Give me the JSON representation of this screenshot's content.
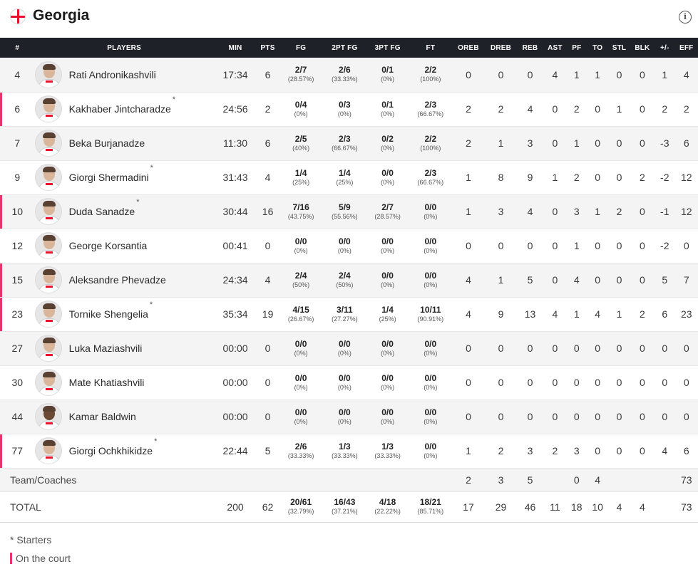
{
  "team": {
    "name": "Georgia"
  },
  "header_icons": {
    "flag": "georgia-flag-icon",
    "info": "info-icon",
    "info_glyph": "i"
  },
  "colors": {
    "header_bg": "#1f2129",
    "on_court_marker": "#e8336d",
    "row_alt": "#f4f4f4"
  },
  "columns": [
    "#",
    "PLAYERS",
    "MIN",
    "PTS",
    "FG",
    "2PT FG",
    "3PT FG",
    "FT",
    "OREB",
    "DREB",
    "REB",
    "AST",
    "PF",
    "TO",
    "STL",
    "BLK",
    "+/-",
    "EFF"
  ],
  "players": [
    {
      "no": "4",
      "name": "Rati Andronikashvili",
      "starter": "",
      "on_court": false,
      "min": "17:34",
      "pts": "6",
      "fg": "2/7",
      "fg_pct": "(28.57%)",
      "fg2": "2/6",
      "fg2_pct": "(33.33%)",
      "fg3": "0/1",
      "fg3_pct": "(0%)",
      "ft": "2/2",
      "ft_pct": "(100%)",
      "oreb": "0",
      "dreb": "0",
      "reb": "0",
      "ast": "4",
      "pf": "1",
      "to": "1",
      "stl": "0",
      "blk": "0",
      "pm": "1",
      "eff": "4"
    },
    {
      "no": "6",
      "name": "Kakhaber Jintcharadze",
      "starter": "*",
      "on_court": true,
      "min": "24:56",
      "pts": "2",
      "fg": "0/4",
      "fg_pct": "(0%)",
      "fg2": "0/3",
      "fg2_pct": "(0%)",
      "fg3": "0/1",
      "fg3_pct": "(0%)",
      "ft": "2/3",
      "ft_pct": "(66.67%)",
      "oreb": "2",
      "dreb": "2",
      "reb": "4",
      "ast": "0",
      "pf": "2",
      "to": "0",
      "stl": "1",
      "blk": "0",
      "pm": "2",
      "eff": "2"
    },
    {
      "no": "7",
      "name": "Beka Burjanadze",
      "starter": "",
      "on_court": false,
      "min": "11:30",
      "pts": "6",
      "fg": "2/5",
      "fg_pct": "(40%)",
      "fg2": "2/3",
      "fg2_pct": "(66.67%)",
      "fg3": "0/2",
      "fg3_pct": "(0%)",
      "ft": "2/2",
      "ft_pct": "(100%)",
      "oreb": "2",
      "dreb": "1",
      "reb": "3",
      "ast": "0",
      "pf": "1",
      "to": "0",
      "stl": "0",
      "blk": "0",
      "pm": "-3",
      "eff": "6"
    },
    {
      "no": "9",
      "name": "Giorgi Shermadini",
      "starter": "*",
      "on_court": false,
      "min": "31:43",
      "pts": "4",
      "fg": "1/4",
      "fg_pct": "(25%)",
      "fg2": "1/4",
      "fg2_pct": "(25%)",
      "fg3": "0/0",
      "fg3_pct": "(0%)",
      "ft": "2/3",
      "ft_pct": "(66.67%)",
      "oreb": "1",
      "dreb": "8",
      "reb": "9",
      "ast": "1",
      "pf": "2",
      "to": "0",
      "stl": "0",
      "blk": "2",
      "pm": "-2",
      "eff": "12"
    },
    {
      "no": "10",
      "name": "Duda Sanadze",
      "starter": "*",
      "on_court": true,
      "min": "30:44",
      "pts": "16",
      "fg": "7/16",
      "fg_pct": "(43.75%)",
      "fg2": "5/9",
      "fg2_pct": "(55.56%)",
      "fg3": "2/7",
      "fg3_pct": "(28.57%)",
      "ft": "0/0",
      "ft_pct": "(0%)",
      "oreb": "1",
      "dreb": "3",
      "reb": "4",
      "ast": "0",
      "pf": "3",
      "to": "1",
      "stl": "2",
      "blk": "0",
      "pm": "-1",
      "eff": "12"
    },
    {
      "no": "12",
      "name": "George Korsantia",
      "starter": "",
      "on_court": false,
      "min": "00:41",
      "pts": "0",
      "fg": "0/0",
      "fg_pct": "(0%)",
      "fg2": "0/0",
      "fg2_pct": "(0%)",
      "fg3": "0/0",
      "fg3_pct": "(0%)",
      "ft": "0/0",
      "ft_pct": "(0%)",
      "oreb": "0",
      "dreb": "0",
      "reb": "0",
      "ast": "0",
      "pf": "1",
      "to": "0",
      "stl": "0",
      "blk": "0",
      "pm": "-2",
      "eff": "0"
    },
    {
      "no": "15",
      "name": "Aleksandre Phevadze",
      "starter": "",
      "on_court": true,
      "min": "24:34",
      "pts": "4",
      "fg": "2/4",
      "fg_pct": "(50%)",
      "fg2": "2/4",
      "fg2_pct": "(50%)",
      "fg3": "0/0",
      "fg3_pct": "(0%)",
      "ft": "0/0",
      "ft_pct": "(0%)",
      "oreb": "4",
      "dreb": "1",
      "reb": "5",
      "ast": "0",
      "pf": "4",
      "to": "0",
      "stl": "0",
      "blk": "0",
      "pm": "5",
      "eff": "7"
    },
    {
      "no": "23",
      "name": "Tornike Shengelia",
      "starter": "*",
      "on_court": true,
      "min": "35:34",
      "pts": "19",
      "fg": "4/15",
      "fg_pct": "(26.67%)",
      "fg2": "3/11",
      "fg2_pct": "(27.27%)",
      "fg3": "1/4",
      "fg3_pct": "(25%)",
      "ft": "10/11",
      "ft_pct": "(90.91%)",
      "oreb": "4",
      "dreb": "9",
      "reb": "13",
      "ast": "4",
      "pf": "1",
      "to": "4",
      "stl": "1",
      "blk": "2",
      "pm": "6",
      "eff": "23"
    },
    {
      "no": "27",
      "name": "Luka Maziashvili",
      "starter": "",
      "on_court": false,
      "min": "00:00",
      "pts": "0",
      "fg": "0/0",
      "fg_pct": "(0%)",
      "fg2": "0/0",
      "fg2_pct": "(0%)",
      "fg3": "0/0",
      "fg3_pct": "(0%)",
      "ft": "0/0",
      "ft_pct": "(0%)",
      "oreb": "0",
      "dreb": "0",
      "reb": "0",
      "ast": "0",
      "pf": "0",
      "to": "0",
      "stl": "0",
      "blk": "0",
      "pm": "0",
      "eff": "0"
    },
    {
      "no": "30",
      "name": "Mate Khatiashvili",
      "starter": "",
      "on_court": false,
      "min": "00:00",
      "pts": "0",
      "fg": "0/0",
      "fg_pct": "(0%)",
      "fg2": "0/0",
      "fg2_pct": "(0%)",
      "fg3": "0/0",
      "fg3_pct": "(0%)",
      "ft": "0/0",
      "ft_pct": "(0%)",
      "oreb": "0",
      "dreb": "0",
      "reb": "0",
      "ast": "0",
      "pf": "0",
      "to": "0",
      "stl": "0",
      "blk": "0",
      "pm": "0",
      "eff": "0"
    },
    {
      "no": "44",
      "name": "Kamar Baldwin",
      "starter": "",
      "on_court": false,
      "min": "00:00",
      "pts": "0",
      "fg": "0/0",
      "fg_pct": "(0%)",
      "fg2": "0/0",
      "fg2_pct": "(0%)",
      "fg3": "0/0",
      "fg3_pct": "(0%)",
      "ft": "0/0",
      "ft_pct": "(0%)",
      "oreb": "0",
      "dreb": "0",
      "reb": "0",
      "ast": "0",
      "pf": "0",
      "to": "0",
      "stl": "0",
      "blk": "0",
      "pm": "0",
      "eff": "0"
    },
    {
      "no": "77",
      "name": "Giorgi Ochkhikidze",
      "starter": "*",
      "on_court": true,
      "min": "22:44",
      "pts": "5",
      "fg": "2/6",
      "fg_pct": "(33.33%)",
      "fg2": "1/3",
      "fg2_pct": "(33.33%)",
      "fg3": "1/3",
      "fg3_pct": "(33.33%)",
      "ft": "0/0",
      "ft_pct": "(0%)",
      "oreb": "1",
      "dreb": "2",
      "reb": "3",
      "ast": "2",
      "pf": "3",
      "to": "0",
      "stl": "0",
      "blk": "0",
      "pm": "4",
      "eff": "6"
    }
  ],
  "team_coaches": {
    "label": "Team/Coaches",
    "oreb": "2",
    "dreb": "3",
    "reb": "5",
    "ast": "",
    "pf": "0",
    "to": "4",
    "stl": "",
    "blk": "",
    "pm": "",
    "eff": "73"
  },
  "total": {
    "label": "TOTAL",
    "min": "200",
    "pts": "62",
    "fg": "20/61",
    "fg_pct": "(32.79%)",
    "fg2": "16/43",
    "fg2_pct": "(37.21%)",
    "fg3": "4/18",
    "fg3_pct": "(22.22%)",
    "ft": "18/21",
    "ft_pct": "(85.71%)",
    "oreb": "17",
    "dreb": "29",
    "reb": "46",
    "ast": "11",
    "pf": "18",
    "to": "10",
    "stl": "4",
    "blk": "4",
    "pm": "",
    "eff": "73"
  },
  "legend": {
    "starters": "* Starters",
    "on_court": "On the court"
  }
}
